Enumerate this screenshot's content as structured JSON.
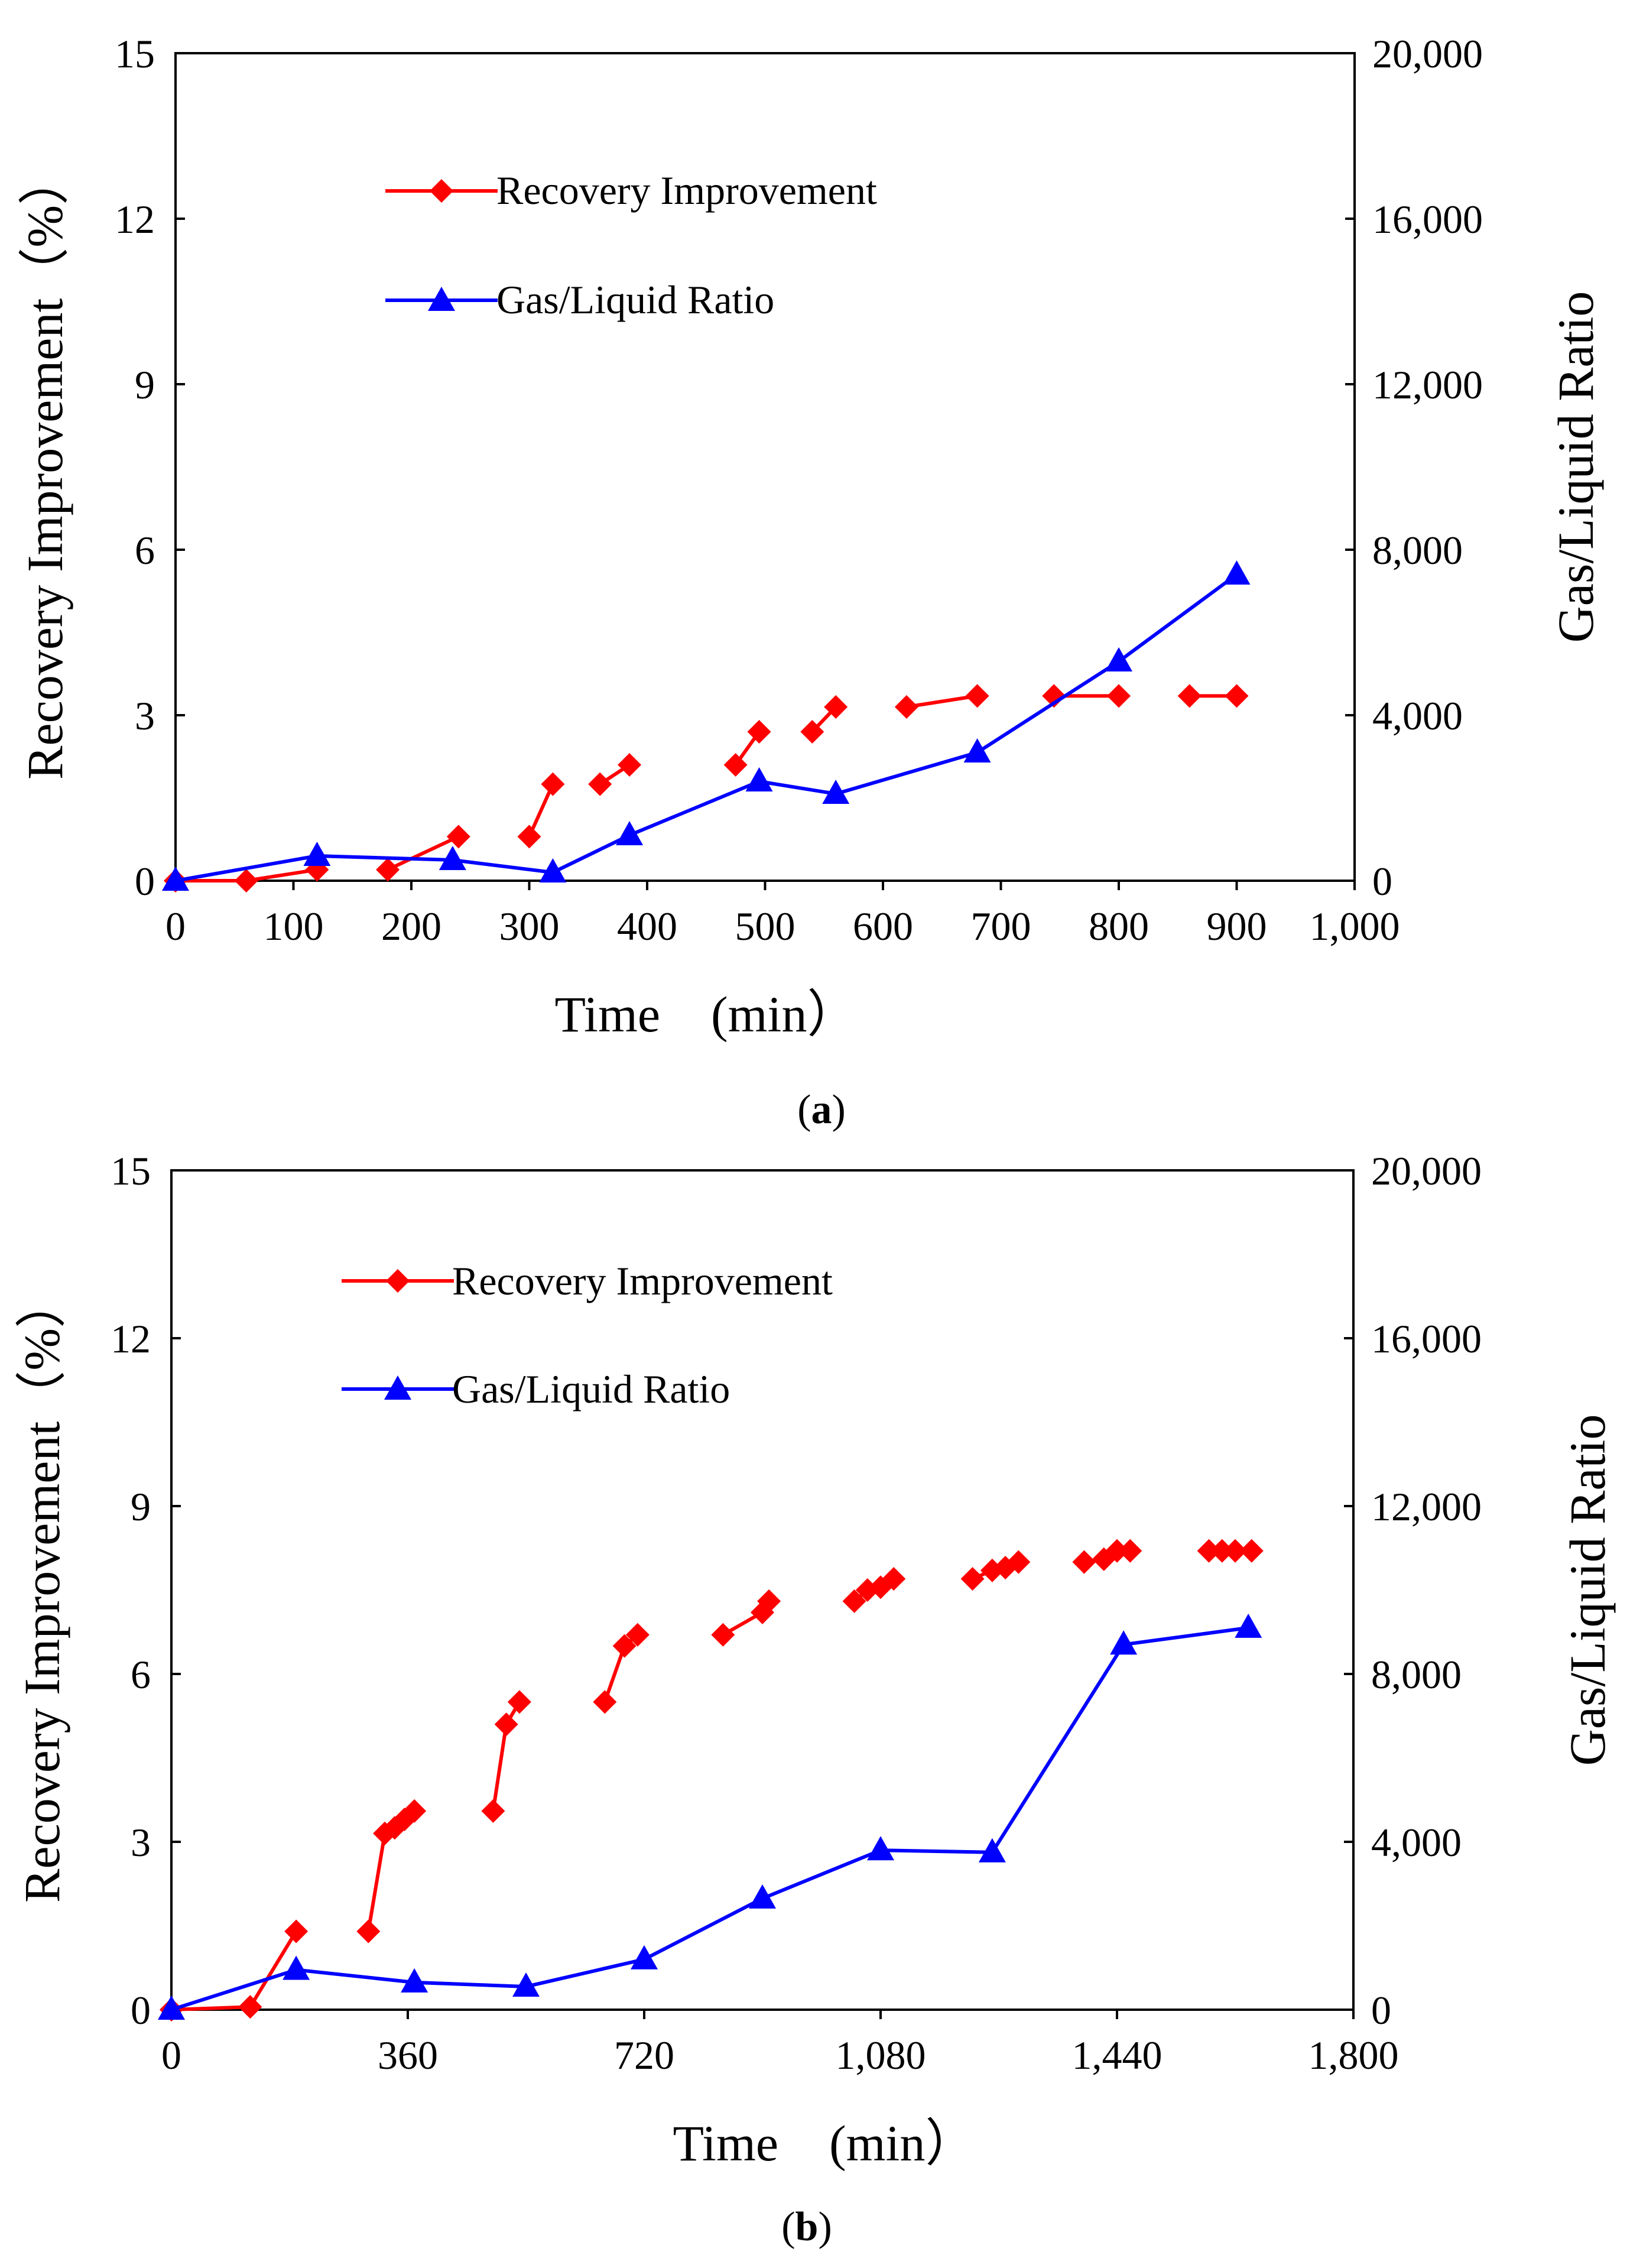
{
  "colors": {
    "recovery": "#ff0000",
    "gas": "#0000ff",
    "axis": "#000000"
  },
  "chart_data": [
    {
      "panel_label_open": "(",
      "panel_label": "a",
      "panel_label_close": ")",
      "type": "line",
      "xlabel": "Time　(min）",
      "ylabel_left": "Recovery Improvement（%）",
      "ylabel_right": "Gas/Liquid Ratio",
      "xlim": [
        0,
        1000
      ],
      "xticks": [
        0,
        100,
        200,
        300,
        400,
        500,
        600,
        700,
        800,
        900,
        1000
      ],
      "xtick_labels": [
        "0",
        "100",
        "200",
        "300",
        "400",
        "500",
        "600",
        "700",
        "800",
        "900",
        "1,000"
      ],
      "ylim_left": [
        0,
        15
      ],
      "yticks_left": [
        0,
        3,
        6,
        9,
        12,
        15
      ],
      "ytick_labels_left": [
        "0",
        "3",
        "6",
        "9",
        "12",
        "15"
      ],
      "ylim_right": [
        0,
        20000
      ],
      "yticks_right": [
        0,
        4000,
        8000,
        12000,
        16000,
        20000
      ],
      "ytick_labels_right": [
        "0",
        "4,000",
        "8,000",
        "12,000",
        "16,000",
        "20,000"
      ],
      "legend": [
        "Recovery Improvement",
        "Gas/Liquid Ratio"
      ],
      "series": [
        {
          "name": "Recovery Improvement",
          "axis": "left",
          "marker": "diamond",
          "segments": [
            [
              [
                0,
                0
              ],
              [
                60,
                0
              ],
              [
                120,
                0.2
              ]
            ],
            [
              [
                180,
                0.2
              ],
              [
                240,
                0.8
              ]
            ],
            [
              [
                300,
                0.8
              ],
              [
                320,
                1.75
              ]
            ],
            [
              [
                360,
                1.75
              ],
              [
                385,
                2.1
              ]
            ],
            [
              [
                475,
                2.1
              ],
              [
                495,
                2.7
              ]
            ],
            [
              [
                540,
                2.7
              ],
              [
                560,
                3.15
              ]
            ],
            [
              [
                620,
                3.15
              ],
              [
                680,
                3.35
              ]
            ],
            [
              [
                745,
                3.35
              ],
              [
                800,
                3.35
              ]
            ],
            [
              [
                860,
                3.35
              ],
              [
                900,
                3.35
              ]
            ]
          ]
        },
        {
          "name": "Gas/Liquid Ratio",
          "axis": "right",
          "marker": "triangle",
          "x": [
            0,
            120,
            235,
            320,
            385,
            495,
            560,
            680,
            800,
            900
          ],
          "values": [
            0,
            600,
            500,
            200,
            1100,
            2400,
            2100,
            3100,
            5300,
            7400
          ]
        }
      ]
    },
    {
      "panel_label_open": "(",
      "panel_label": "b",
      "panel_label_close": ")",
      "type": "line",
      "xlabel": "Time　(min）",
      "ylabel_left": "Recovery Improvement（%）",
      "ylabel_right": "Gas/Liquid Ratio",
      "xlim": [
        0,
        1800
      ],
      "xticks": [
        0,
        360,
        720,
        1080,
        1440,
        1800
      ],
      "xtick_labels": [
        "0",
        "360",
        "720",
        "1,080",
        "1,440",
        "1,800"
      ],
      "ylim_left": [
        0,
        15
      ],
      "yticks_left": [
        0,
        3,
        6,
        9,
        12,
        15
      ],
      "ytick_labels_left": [
        "0",
        "3",
        "6",
        "9",
        "12",
        "15"
      ],
      "ylim_right": [
        0,
        20000
      ],
      "yticks_right": [
        0,
        4000,
        8000,
        12000,
        16000,
        20000
      ],
      "ytick_labels_right": [
        "0",
        "4,000",
        "8,000",
        "12,000",
        "16,000",
        "20,000"
      ],
      "legend": [
        "Recovery Improvement",
        "Gas/Liquid Ratio"
      ],
      "series": [
        {
          "name": "Recovery Improvement",
          "axis": "left",
          "marker": "diamond",
          "segments": [
            [
              [
                0,
                0
              ],
              [
                120,
                0.05
              ],
              [
                190,
                1.4
              ]
            ],
            [
              [
                300,
                1.4
              ],
              [
                325,
                3.15
              ],
              [
                340,
                3.25
              ],
              [
                355,
                3.4
              ],
              [
                370,
                3.55
              ]
            ],
            [
              [
                490,
                3.55
              ],
              [
                510,
                5.1
              ],
              [
                530,
                5.5
              ]
            ],
            [
              [
                660,
                5.5
              ],
              [
                690,
                6.5
              ],
              [
                710,
                6.7
              ]
            ],
            [
              [
                840,
                6.7
              ],
              [
                900,
                7.1
              ],
              [
                910,
                7.3
              ]
            ],
            [
              [
                1040,
                7.3
              ],
              [
                1060,
                7.5
              ],
              [
                1080,
                7.55
              ],
              [
                1100,
                7.7
              ]
            ],
            [
              [
                1220,
                7.7
              ],
              [
                1250,
                7.85
              ],
              [
                1270,
                7.9
              ],
              [
                1290,
                8.0
              ]
            ],
            [
              [
                1390,
                8.0
              ],
              [
                1420,
                8.05
              ],
              [
                1440,
                8.2
              ],
              [
                1460,
                8.2
              ]
            ],
            [
              [
                1580,
                8.2
              ],
              [
                1600,
                8.2
              ],
              [
                1620,
                8.2
              ],
              [
                1645,
                8.2
              ]
            ]
          ]
        },
        {
          "name": "Gas/Liquid Ratio",
          "axis": "right",
          "marker": "triangle",
          "x": [
            0,
            190,
            370,
            540,
            720,
            900,
            1080,
            1250,
            1450,
            1640
          ],
          "values": [
            0,
            950,
            650,
            550,
            1200,
            2650,
            3800,
            3750,
            8700,
            9100
          ]
        }
      ]
    }
  ]
}
